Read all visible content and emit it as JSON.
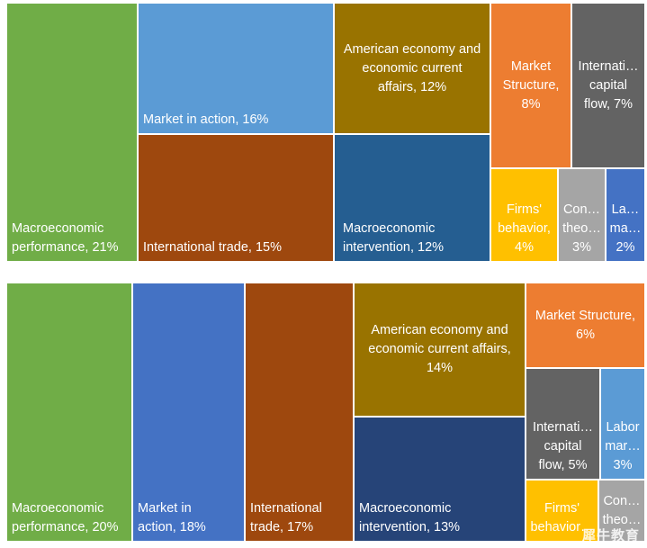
{
  "chart_data": [
    {
      "type": "treemap",
      "items": [
        {
          "label": "Macroeconomic\nperformance, 21%",
          "name": "Macroeconomic performance",
          "value": 21,
          "color": "#70AD47"
        },
        {
          "label": "Market in action, 16%",
          "name": "Market in action",
          "value": 16,
          "color": "#5B9BD5"
        },
        {
          "label": "International  trade, 15%",
          "name": "International trade",
          "value": 15,
          "color": "#9E480E"
        },
        {
          "label": "American economy and\neconomic current\naffairs, 12%",
          "name": "American economy and economic current affairs",
          "value": 12,
          "color": "#997300"
        },
        {
          "label": "Macroeconomic\nintervention, 12%",
          "name": "Macroeconomic intervention",
          "value": 12,
          "color": "#255E91"
        },
        {
          "label": "Market\nStructure,\n8%",
          "name": "Market Structure",
          "value": 8,
          "color": "#ED7D31"
        },
        {
          "label": "Internati…\ncapital\nflow, 7%",
          "name": "International capital flow",
          "value": 7,
          "color": "#636363"
        },
        {
          "label": "Firms'\nbehavior,\n4%",
          "name": "Firms' behavior",
          "value": 4,
          "color": "#FFC000"
        },
        {
          "label": "Con…\ntheo…\n3%",
          "name": "Consumer theory",
          "value": 3,
          "color": "#A5A5A5"
        },
        {
          "label": "La…\nma…\n2%",
          "name": "Labor market",
          "value": 2,
          "color": "#4472C4"
        }
      ]
    },
    {
      "type": "treemap",
      "items": [
        {
          "label": "Macroeconomic\nperformance, 20%",
          "name": "Macroeconomic performance",
          "value": 20,
          "color": "#70AD47"
        },
        {
          "label": "Market in\naction, 18%",
          "name": "Market in action",
          "value": 18,
          "color": "#4472C4"
        },
        {
          "label": "International\ntrade, 17%",
          "name": "International trade",
          "value": 17,
          "color": "#9E480E"
        },
        {
          "label": "American economy and\neconomic current affairs,\n14%",
          "name": "American economy and economic current affairs",
          "value": 14,
          "color": "#997300"
        },
        {
          "label": "Macroeconomic\nintervention, 13%",
          "name": "Macroeconomic intervention",
          "value": 13,
          "color": "#264478"
        },
        {
          "label": "Market Structure,\n6%",
          "name": "Market Structure",
          "value": 6,
          "color": "#ED7D31"
        },
        {
          "label": "Internati…\ncapital\nflow, 5%",
          "name": "International capital flow",
          "value": 5,
          "color": "#636363"
        },
        {
          "label": "Labor\nmar…\n3%",
          "name": "Labor market",
          "value": 3,
          "color": "#5B9BD5"
        },
        {
          "label": "Firms'\nbehavior…",
          "name": "Firms' behavior",
          "value": 2,
          "color": "#FFC000"
        },
        {
          "label": "Con…\ntheo…",
          "name": "Consumer theory",
          "value": 2,
          "color": "#A5A5A5"
        }
      ]
    }
  ],
  "watermark": "犀牛教育"
}
